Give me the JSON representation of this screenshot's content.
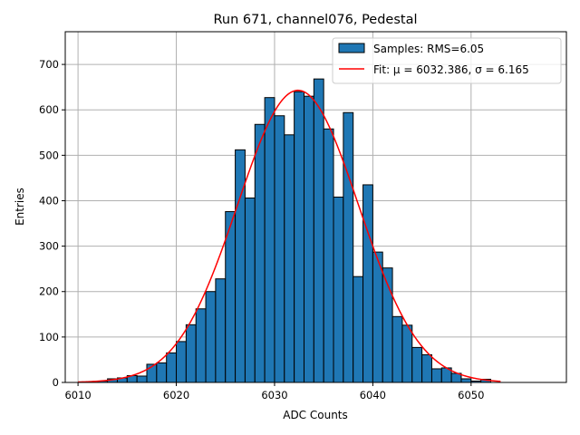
{
  "chart_data": {
    "type": "bar",
    "title": "Run 671, channel076, Pedestal",
    "xlabel": "ADC Counts",
    "ylabel": "Entries",
    "xlim": [
      6008.7,
      6059.7
    ],
    "ylim": [
      0,
      772
    ],
    "grid": true,
    "legend_position": "top-right",
    "bin_edges_start": 6012,
    "bin_width": 1,
    "values": [
      3,
      8,
      10,
      15,
      14,
      40,
      43,
      65,
      90,
      127,
      162,
      200,
      228,
      376,
      512,
      406,
      568,
      627,
      587,
      545,
      640,
      630,
      668,
      558,
      408,
      594,
      233,
      435,
      287,
      252,
      145,
      126,
      77,
      61,
      30,
      32,
      20,
      8,
      3,
      7
    ],
    "x_ticks": [
      6010,
      6020,
      6030,
      6040,
      6050
    ],
    "y_ticks": [
      0,
      100,
      200,
      300,
      400,
      500,
      600,
      700
    ],
    "series": [
      {
        "name": "Samples: RMS=6.05",
        "kind": "histogram",
        "color": "#1f77b4"
      },
      {
        "name": "Fit: μ = 6032.386, σ = 6.165",
        "kind": "line",
        "color": "#ff0000",
        "mu": 6032.386,
        "sigma": 6.165,
        "amplitude": 643
      }
    ]
  }
}
